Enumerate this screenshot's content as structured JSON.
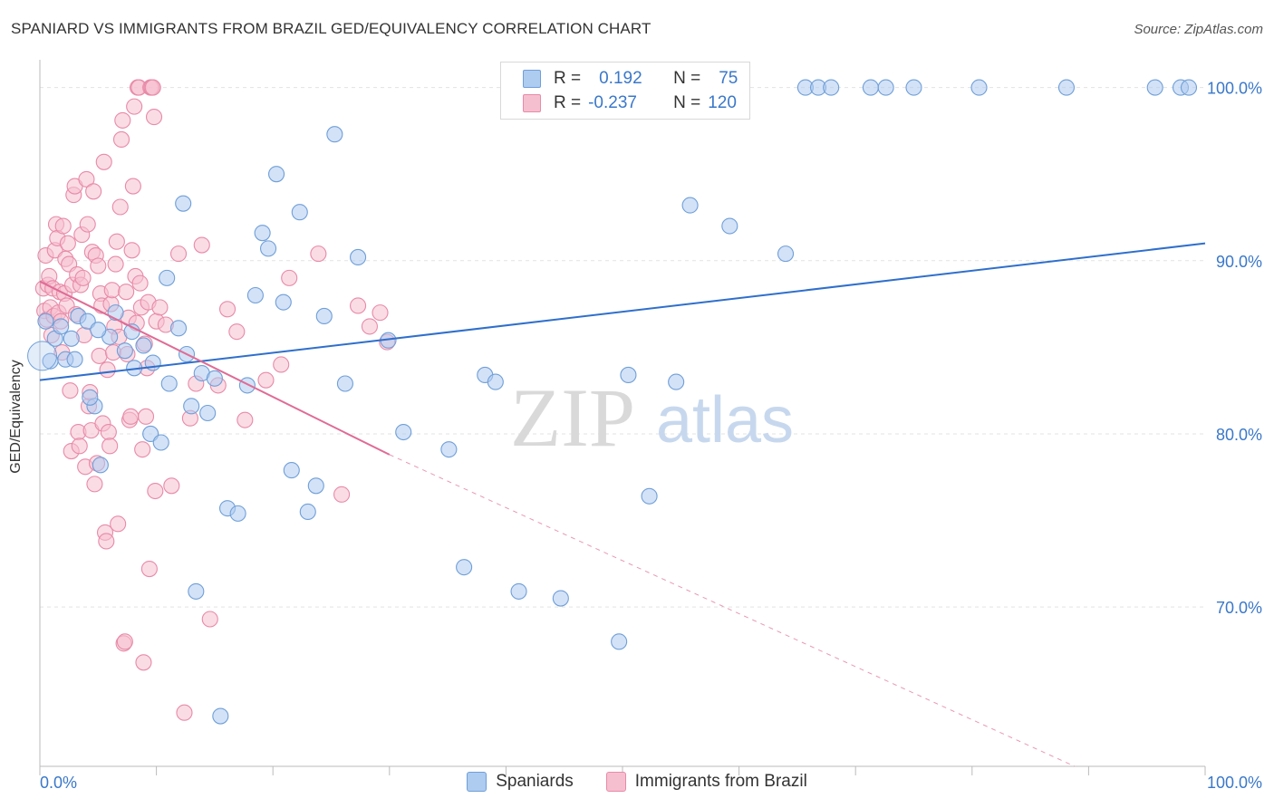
{
  "header": {
    "title": "SPANIARD VS IMMIGRANTS FROM BRAZIL GED/EQUIVALENCY CORRELATION CHART",
    "source": "Source: ZipAtlas.com"
  },
  "watermark": {
    "zip": "ZIP",
    "atlas": "atlas"
  },
  "stats_legend": {
    "row1": {
      "r_label": "R =",
      "r_value": "0.192",
      "n_label": "N =",
      "n_value": "75"
    },
    "row2": {
      "r_label": "R =",
      "r_value": "-0.237",
      "n_label": "N =",
      "n_value": "120"
    }
  },
  "bottom_legend": {
    "series1": "Spaniards",
    "series2": "Immigrants from Brazil"
  },
  "colors": {
    "blue_fill": "#aecbf0",
    "blue_stroke": "#6f9fd8",
    "blue_line": "#2f6fcc",
    "pink_fill": "#f6bfd0",
    "pink_stroke": "#e88aa8",
    "pink_line": "#e06b95",
    "axis_text": "#3a78c9",
    "grid": "#e3e3e3"
  },
  "chart_data": {
    "type": "scatter",
    "title": "SPANIARD VS IMMIGRANTS FROM BRAZIL GED/EQUIVALENCY CORRELATION CHART",
    "xlabel": "",
    "ylabel": "GED/Equivalency",
    "x_tick_labels": [
      "0.0%",
      "100.0%"
    ],
    "y_tick_labels": [
      "100.0%",
      "90.0%",
      "80.0%",
      "70.0%"
    ],
    "y_ticks": [
      100,
      90,
      80,
      70
    ],
    "xlim": [
      0,
      100
    ],
    "ylim": [
      60.8,
      101.6
    ],
    "grid": true,
    "legend_position": "bottom",
    "series": [
      {
        "name": "Spaniards",
        "trend": {
          "x": [
            0,
            100
          ],
          "y": [
            83.1,
            91.0
          ]
        },
        "x": [
          0.5,
          0.9,
          1.3,
          1.8,
          2.2,
          2.7,
          3.3,
          4.1,
          4.7,
          5.2,
          6.0,
          6.5,
          7.3,
          8.1,
          8.9,
          9.5,
          10.4,
          11.1,
          11.9,
          12.6,
          13.0,
          13.4,
          13.9,
          14.4,
          15.0,
          15.5,
          16.1,
          17.0,
          17.8,
          18.5,
          19.1,
          19.6,
          20.3,
          20.9,
          21.6,
          22.3,
          23.0,
          23.7,
          24.4,
          25.3,
          26.2,
          27.3,
          29.9,
          31.2,
          35.1,
          36.4,
          38.2,
          39.1,
          41.1,
          44.7,
          49.7,
          50.5,
          52.3,
          54.6,
          55.8,
          59.2,
          64.0,
          65.7,
          66.8,
          67.9,
          71.3,
          72.6,
          75.0,
          80.6,
          88.1,
          95.7,
          97.9,
          98.6,
          3.0,
          4.3,
          5.0,
          7.9,
          9.7,
          10.9,
          12.3
        ],
        "y": [
          86.5,
          84.2,
          85.5,
          86.2,
          84.3,
          85.5,
          86.8,
          86.5,
          81.6,
          78.2,
          85.6,
          87.0,
          84.8,
          83.8,
          85.1,
          80.0,
          79.5,
          82.9,
          86.1,
          84.6,
          81.6,
          70.9,
          83.5,
          81.2,
          83.2,
          63.7,
          75.7,
          75.4,
          82.8,
          88.0,
          91.6,
          90.7,
          95.0,
          87.6,
          77.9,
          92.8,
          75.5,
          77.0,
          86.8,
          97.3,
          82.9,
          90.2,
          85.4,
          80.1,
          79.1,
          72.3,
          83.4,
          83.0,
          70.9,
          70.5,
          68.0,
          83.4,
          76.4,
          83.0,
          93.2,
          92.0,
          90.4,
          100.0,
          100.0,
          100.0,
          100.0,
          100.0,
          100.0,
          100.0,
          100.0,
          100.0,
          100.0,
          100.0,
          84.3,
          82.1,
          86.0,
          85.9,
          84.1,
          89.0,
          93.3
        ]
      },
      {
        "name": "Immigrants from Brazil",
        "trend": {
          "x": [
            0,
            30
          ],
          "y": [
            88.8,
            78.8
          ]
        },
        "trend_extension": {
          "x": [
            30,
            88.8
          ],
          "y": [
            78.8,
            60.8
          ]
        },
        "x": [
          0.3,
          0.4,
          0.5,
          0.6,
          0.7,
          0.8,
          0.9,
          1.0,
          1.1,
          1.2,
          1.3,
          1.4,
          1.5,
          1.6,
          1.7,
          1.8,
          1.9,
          2.0,
          2.1,
          2.2,
          2.3,
          2.4,
          2.5,
          2.6,
          2.7,
          2.8,
          2.9,
          3.0,
          3.1,
          3.2,
          3.3,
          3.4,
          3.5,
          3.6,
          3.7,
          3.8,
          3.9,
          4.0,
          4.1,
          4.2,
          4.3,
          4.4,
          4.5,
          4.6,
          4.7,
          4.8,
          4.9,
          5.0,
          5.1,
          5.2,
          5.3,
          5.4,
          5.5,
          5.6,
          5.7,
          5.8,
          5.9,
          6.0,
          6.1,
          6.2,
          6.3,
          6.4,
          6.5,
          6.6,
          6.7,
          6.8,
          6.9,
          7.0,
          7.1,
          7.2,
          7.3,
          7.4,
          7.5,
          7.6,
          7.7,
          7.8,
          7.9,
          8.0,
          8.1,
          8.2,
          8.3,
          8.4,
          8.5,
          8.6,
          8.7,
          8.8,
          8.9,
          9.0,
          9.1,
          9.2,
          9.3,
          9.4,
          9.5,
          9.6,
          9.7,
          9.8,
          9.9,
          10.0,
          10.3,
          10.8,
          11.3,
          11.9,
          12.4,
          12.9,
          13.4,
          13.9,
          14.6,
          15.3,
          16.1,
          16.9,
          17.6,
          19.4,
          20.7,
          21.4,
          23.9,
          25.9,
          27.3,
          28.3,
          29.2,
          29.8
        ],
        "y": [
          88.4,
          87.1,
          90.3,
          86.6,
          88.6,
          89.1,
          87.3,
          85.7,
          88.4,
          86.8,
          90.6,
          92.1,
          91.3,
          87.0,
          88.2,
          86.5,
          84.7,
          92.0,
          88.1,
          90.1,
          87.4,
          91.0,
          89.8,
          82.5,
          79.0,
          88.6,
          93.8,
          94.3,
          86.9,
          89.2,
          80.1,
          79.3,
          88.6,
          91.5,
          89.0,
          85.7,
          78.1,
          94.7,
          92.1,
          81.6,
          82.4,
          80.2,
          90.5,
          94.0,
          77.1,
          90.3,
          78.3,
          89.7,
          84.5,
          88.1,
          87.4,
          80.6,
          95.7,
          74.3,
          73.8,
          83.7,
          80.1,
          79.3,
          87.5,
          88.3,
          84.7,
          86.2,
          89.8,
          91.1,
          74.8,
          85.6,
          93.1,
          97.0,
          98.1,
          67.9,
          68.0,
          88.2,
          84.6,
          86.7,
          80.8,
          81.0,
          90.6,
          94.3,
          98.9,
          89.1,
          86.4,
          100.0,
          100.0,
          88.7,
          87.3,
          79.1,
          66.8,
          85.2,
          81.0,
          83.8,
          87.6,
          72.2,
          100.0,
          100.0,
          100.0,
          98.3,
          76.7,
          86.5,
          87.3,
          86.3,
          77.0,
          90.4,
          63.9,
          80.9,
          82.9,
          90.9,
          69.3,
          82.8,
          87.2,
          85.9,
          80.8,
          83.1,
          84.0,
          89.0,
          90.4,
          76.5,
          87.4,
          86.2,
          87.0,
          85.3
        ]
      }
    ]
  }
}
